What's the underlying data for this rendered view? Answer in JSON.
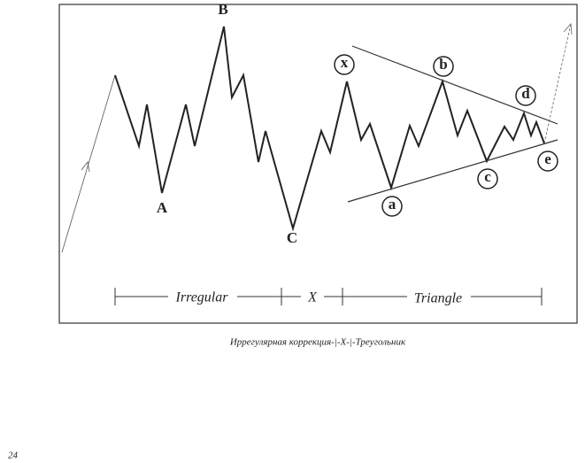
{
  "figure": {
    "wave_labels": {
      "A": "A",
      "B": "B",
      "C": "C"
    },
    "triangle_labels": {
      "x": "x",
      "a": "a",
      "b": "b",
      "c": "c",
      "d": "d",
      "e": "e"
    },
    "sections": [
      "Irregular",
      "X",
      "Triangle"
    ]
  },
  "caption": "Иррегулярная коррекция-|-X-|-Треугольник",
  "page_number": "24"
}
